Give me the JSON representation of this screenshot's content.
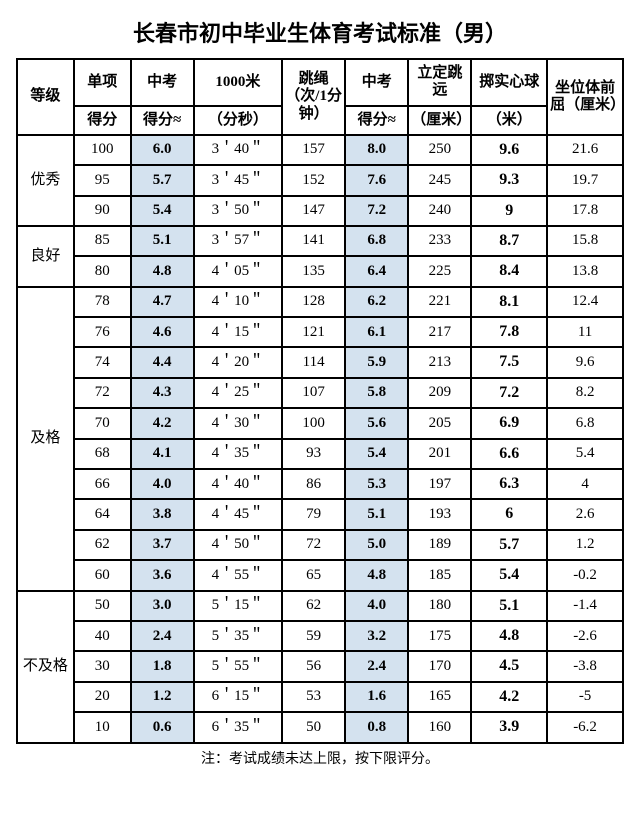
{
  "title": "长春市初中毕业生体育考试标准（男）",
  "note": "注：考试成绩未达上限，按下限评分。",
  "header": {
    "grade": "等级",
    "single": "单项",
    "score": "得分",
    "zhongkao": "中考",
    "zk_score_approx": "得分≈",
    "m1000": "1000米",
    "min_sec": "（分秒）",
    "rope": "跳绳（次/1分钟）",
    "long_jump": "立定跳远",
    "cm": "（厘米）",
    "ball": "掷实心球",
    "m": "（米）",
    "sit": "坐位体前屈（厘米）"
  },
  "grades": [
    {
      "label": "优秀",
      "count": 3
    },
    {
      "label": "良好",
      "count": 2
    },
    {
      "label": "及格",
      "count": 10
    },
    {
      "label": "不及格",
      "count": 5
    }
  ],
  "rows": [
    {
      "score": "100",
      "zk1": "6.0",
      "m1000": "3＇40＂",
      "rope": "157",
      "zk2": "8.0",
      "jump": "250",
      "ball": "9.6",
      "sit": "21.6"
    },
    {
      "score": "95",
      "zk1": "5.7",
      "m1000": "3＇45＂",
      "rope": "152",
      "zk2": "7.6",
      "jump": "245",
      "ball": "9.3",
      "sit": "19.7"
    },
    {
      "score": "90",
      "zk1": "5.4",
      "m1000": "3＇50＂",
      "rope": "147",
      "zk2": "7.2",
      "jump": "240",
      "ball": "9",
      "sit": "17.8"
    },
    {
      "score": "85",
      "zk1": "5.1",
      "m1000": "3＇57＂",
      "rope": "141",
      "zk2": "6.8",
      "jump": "233",
      "ball": "8.7",
      "sit": "15.8"
    },
    {
      "score": "80",
      "zk1": "4.8",
      "m1000": "4＇05＂",
      "rope": "135",
      "zk2": "6.4",
      "jump": "225",
      "ball": "8.4",
      "sit": "13.8"
    },
    {
      "score": "78",
      "zk1": "4.7",
      "m1000": "4＇10＂",
      "rope": "128",
      "zk2": "6.2",
      "jump": "221",
      "ball": "8.1",
      "sit": "12.4"
    },
    {
      "score": "76",
      "zk1": "4.6",
      "m1000": "4＇15＂",
      "rope": "121",
      "zk2": "6.1",
      "jump": "217",
      "ball": "7.8",
      "sit": "11"
    },
    {
      "score": "74",
      "zk1": "4.4",
      "m1000": "4＇20＂",
      "rope": "114",
      "zk2": "5.9",
      "jump": "213",
      "ball": "7.5",
      "sit": "9.6"
    },
    {
      "score": "72",
      "zk1": "4.3",
      "m1000": "4＇25＂",
      "rope": "107",
      "zk2": "5.8",
      "jump": "209",
      "ball": "7.2",
      "sit": "8.2"
    },
    {
      "score": "70",
      "zk1": "4.2",
      "m1000": "4＇30＂",
      "rope": "100",
      "zk2": "5.6",
      "jump": "205",
      "ball": "6.9",
      "sit": "6.8"
    },
    {
      "score": "68",
      "zk1": "4.1",
      "m1000": "4＇35＂",
      "rope": "93",
      "zk2": "5.4",
      "jump": "201",
      "ball": "6.6",
      "sit": "5.4"
    },
    {
      "score": "66",
      "zk1": "4.0",
      "m1000": "4＇40＂",
      "rope": "86",
      "zk2": "5.3",
      "jump": "197",
      "ball": "6.3",
      "sit": "4"
    },
    {
      "score": "64",
      "zk1": "3.8",
      "m1000": "4＇45＂",
      "rope": "79",
      "zk2": "5.1",
      "jump": "193",
      "ball": "6",
      "sit": "2.6"
    },
    {
      "score": "62",
      "zk1": "3.7",
      "m1000": "4＇50＂",
      "rope": "72",
      "zk2": "5.0",
      "jump": "189",
      "ball": "5.7",
      "sit": "1.2"
    },
    {
      "score": "60",
      "zk1": "3.6",
      "m1000": "4＇55＂",
      "rope": "65",
      "zk2": "4.8",
      "jump": "185",
      "ball": "5.4",
      "sit": "-0.2"
    },
    {
      "score": "50",
      "zk1": "3.0",
      "m1000": "5＇15＂",
      "rope": "62",
      "zk2": "4.0",
      "jump": "180",
      "ball": "5.1",
      "sit": "-1.4"
    },
    {
      "score": "40",
      "zk1": "2.4",
      "m1000": "5＇35＂",
      "rope": "59",
      "zk2": "3.2",
      "jump": "175",
      "ball": "4.8",
      "sit": "-2.6"
    },
    {
      "score": "30",
      "zk1": "1.8",
      "m1000": "5＇55＂",
      "rope": "56",
      "zk2": "2.4",
      "jump": "170",
      "ball": "4.5",
      "sit": "-3.8"
    },
    {
      "score": "20",
      "zk1": "1.2",
      "m1000": "6＇15＂",
      "rope": "53",
      "zk2": "1.6",
      "jump": "165",
      "ball": "4.2",
      "sit": "-5"
    },
    {
      "score": "10",
      "zk1": "0.6",
      "m1000": "6＇35＂",
      "rope": "50",
      "zk2": "0.8",
      "jump": "160",
      "ball": "3.9",
      "sit": "-6.2"
    }
  ],
  "style": {
    "highlight_color": "#d4e2ef",
    "border_color": "#000000",
    "background_color": "#ffffff",
    "title_fontsize": 22,
    "cell_fontsize": 15
  }
}
